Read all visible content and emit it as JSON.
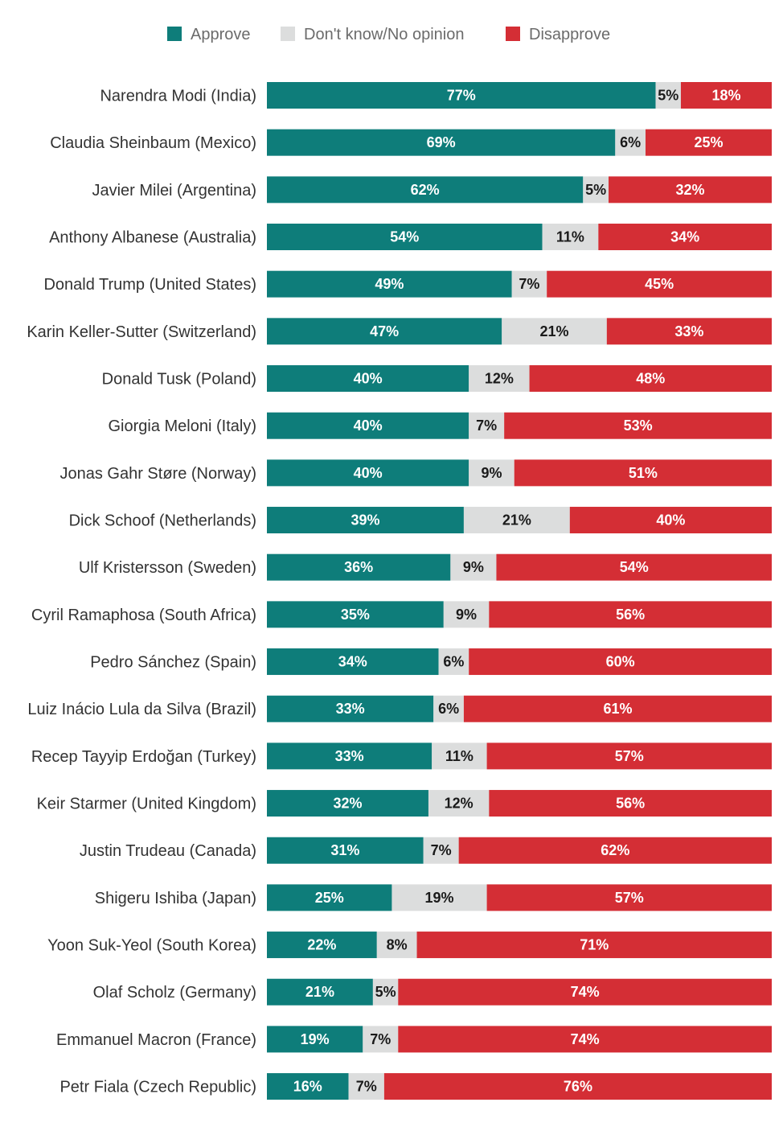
{
  "chart_data": {
    "type": "bar",
    "orientation": "horizontal",
    "stacked": true,
    "categories": [
      "Narendra Modi (India)",
      "Claudia Sheinbaum (Mexico)",
      "Javier Milei (Argentina)",
      "Anthony Albanese (Australia)",
      "Donald Trump (United States)",
      "Karin Keller-Sutter (Switzerland)",
      "Donald Tusk (Poland)",
      "Giorgia Meloni (Italy)",
      "Jonas Gahr Støre (Norway)",
      "Dick Schoof (Netherlands)",
      "Ulf Kristersson (Sweden)",
      "Cyril Ramaphosa (South Africa)",
      "Pedro Sánchez (Spain)",
      "Luiz Inácio Lula da Silva (Brazil)",
      "Recep Tayyip Erdoğan (Turkey)",
      "Keir Starmer (United Kingdom)",
      "Justin Trudeau (Canada)",
      "Shigeru Ishiba (Japan)",
      "Yoon Suk-Yeol (South Korea)",
      "Olaf Scholz (Germany)",
      "Emmanuel Macron (France)",
      "Petr Fiala (Czech Republic)"
    ],
    "series": [
      {
        "name": "Approve",
        "color": "#0e7d7a",
        "values": [
          77,
          69,
          62,
          54,
          49,
          47,
          40,
          40,
          40,
          39,
          36,
          35,
          34,
          33,
          33,
          32,
          31,
          25,
          22,
          21,
          19,
          16
        ]
      },
      {
        "name": "Don't know/No opinion",
        "color": "#dcdddd",
        "values": [
          5,
          6,
          5,
          11,
          7,
          21,
          12,
          7,
          9,
          21,
          9,
          9,
          6,
          6,
          11,
          12,
          7,
          19,
          8,
          5,
          7,
          7
        ]
      },
      {
        "name": "Disapprove",
        "color": "#d42e35",
        "values": [
          18,
          25,
          32,
          34,
          45,
          33,
          48,
          53,
          51,
          40,
          54,
          56,
          60,
          61,
          57,
          56,
          62,
          57,
          71,
          74,
          74,
          76
        ]
      }
    ],
    "value_suffix": "%",
    "legend_position": "top",
    "title": "",
    "xlabel": "",
    "ylabel": ""
  }
}
